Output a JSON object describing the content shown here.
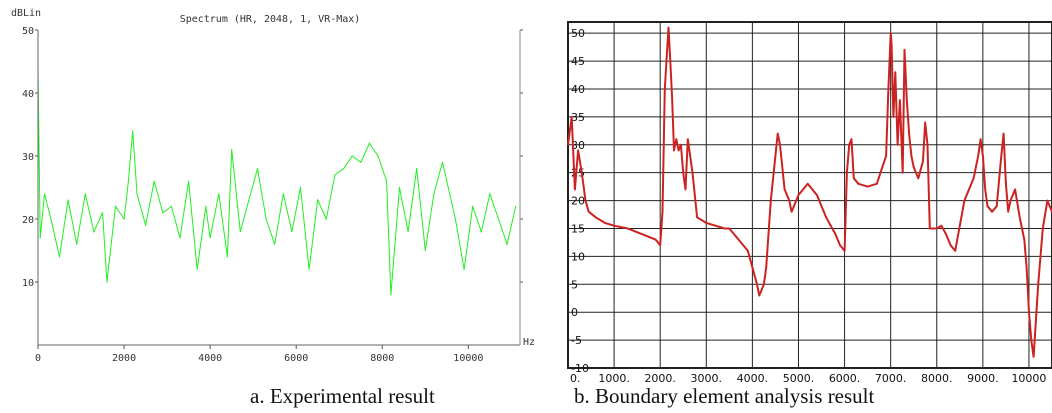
{
  "chart_data": [
    {
      "type": "line",
      "title": "Spectrum (HR, 2048, 1, VR-Max)",
      "ylabel": "dBLin",
      "xlabel": "Hz",
      "xlim": [
        0,
        11200
      ],
      "ylim": [
        0,
        50
      ],
      "x_ticks": [
        "0",
        "2000",
        "4000",
        "6000",
        "8000",
        "10000"
      ],
      "y_ticks": [
        "10",
        "20",
        "30",
        "40",
        "50"
      ],
      "grid": false,
      "series": [
        {
          "color": "#22ee22",
          "x": [
            0,
            50,
            150,
            300,
            500,
            700,
            900,
            1100,
            1300,
            1500,
            1600,
            1800,
            2000,
            2100,
            2200,
            2300,
            2500,
            2700,
            2900,
            3100,
            3300,
            3500,
            3700,
            3900,
            4000,
            4200,
            4400,
            4500,
            4700,
            4900,
            5100,
            5300,
            5500,
            5700,
            5900,
            6100,
            6300,
            6500,
            6700,
            6900,
            7100,
            7300,
            7500,
            7700,
            7900,
            8100,
            8200,
            8400,
            8600,
            8800,
            9000,
            9200,
            9400,
            9500,
            9700,
            9900,
            10100,
            10300,
            10500,
            10700,
            10900,
            11100
          ],
          "y": [
            44,
            17,
            24,
            20,
            14,
            23,
            16,
            24,
            18,
            21,
            10,
            22,
            20,
            26,
            34,
            24,
            19,
            26,
            21,
            22,
            17,
            26,
            12,
            22,
            17,
            24,
            14,
            31,
            18,
            23,
            28,
            20,
            16,
            24,
            18,
            25,
            12,
            23,
            20,
            27,
            28,
            30,
            29,
            32,
            30,
            26,
            8,
            25,
            18,
            28,
            15,
            24,
            29,
            26,
            20,
            12,
            22,
            18,
            24,
            20,
            16,
            22
          ]
        }
      ]
    },
    {
      "type": "line",
      "xlim": [
        0,
        10500
      ],
      "ylim": [
        -10,
        52
      ],
      "x_ticks": [
        "0.",
        "1000.",
        "2000.",
        "3000.",
        "4000.",
        "5000.",
        "6000.",
        "7000.",
        "8000.",
        "9000.",
        "10000"
      ],
      "y_ticks": [
        "-10",
        "-5",
        "0",
        "5",
        "10",
        "15",
        "20",
        "25",
        "30",
        "35",
        "40",
        "45",
        "50"
      ],
      "grid": true,
      "series": [
        {
          "color": "#cc2222",
          "x": [
            0,
            80,
            150,
            220,
            300,
            380,
            450,
            600,
            800,
            1000,
            1300,
            1600,
            1900,
            2000,
            2050,
            2100,
            2180,
            2220,
            2260,
            2300,
            2350,
            2400,
            2450,
            2500,
            2550,
            2600,
            2700,
            2800,
            3000,
            3200,
            3400,
            3500,
            3700,
            3900,
            4000,
            4100,
            4150,
            4200,
            4250,
            4300,
            4400,
            4500,
            4550,
            4600,
            4700,
            4800,
            4850,
            5000,
            5100,
            5200,
            5400,
            5600,
            5800,
            5900,
            6000,
            6050,
            6100,
            6150,
            6200,
            6300,
            6500,
            6700,
            6900,
            6950,
            7000,
            7020,
            7060,
            7100,
            7150,
            7200,
            7260,
            7300,
            7350,
            7400,
            7450,
            7500,
            7550,
            7600,
            7700,
            7750,
            7800,
            7850,
            7900,
            8000,
            8100,
            8200,
            8300,
            8400,
            8600,
            8800,
            8850,
            8900,
            8950,
            9000,
            9050,
            9100,
            9200,
            9300,
            9400,
            9450,
            9500,
            9550,
            9600,
            9700,
            9800,
            9900,
            9950,
            10000,
            10050,
            10100,
            10200,
            10300,
            10400,
            10500
          ],
          "y": [
            30,
            35,
            22,
            29,
            25,
            20,
            18,
            17,
            16,
            15.5,
            15,
            14,
            13,
            12,
            18,
            40,
            51,
            45,
            38,
            29,
            31,
            29,
            30,
            25,
            22,
            31,
            25,
            17,
            16,
            15.5,
            15,
            15,
            13,
            11,
            8,
            5,
            3,
            4,
            5,
            8,
            20,
            28,
            32,
            30,
            22,
            20,
            18,
            21,
            22,
            23,
            21,
            17,
            14,
            12,
            11,
            25,
            30,
            31,
            24,
            23,
            22.5,
            23,
            28,
            40,
            50,
            48,
            35,
            43,
            30,
            38,
            25,
            47,
            38,
            32,
            28,
            26,
            25,
            24,
            27,
            34,
            30,
            15,
            15,
            15,
            15.5,
            14,
            12,
            11,
            20,
            24,
            26,
            28,
            31,
            28,
            22,
            19,
            18,
            19,
            28,
            32,
            23,
            18,
            20,
            22,
            17,
            13,
            8,
            0,
            -5,
            -8,
            5,
            15,
            20,
            18
          ]
        }
      ]
    }
  ],
  "captions": {
    "a": "a. Experimental result",
    "b": "b. Boundary element analysis result"
  },
  "colors": {
    "left_signal": "#22ee22",
    "right_signal": "#cc2222",
    "right_grid": "#222222"
  }
}
